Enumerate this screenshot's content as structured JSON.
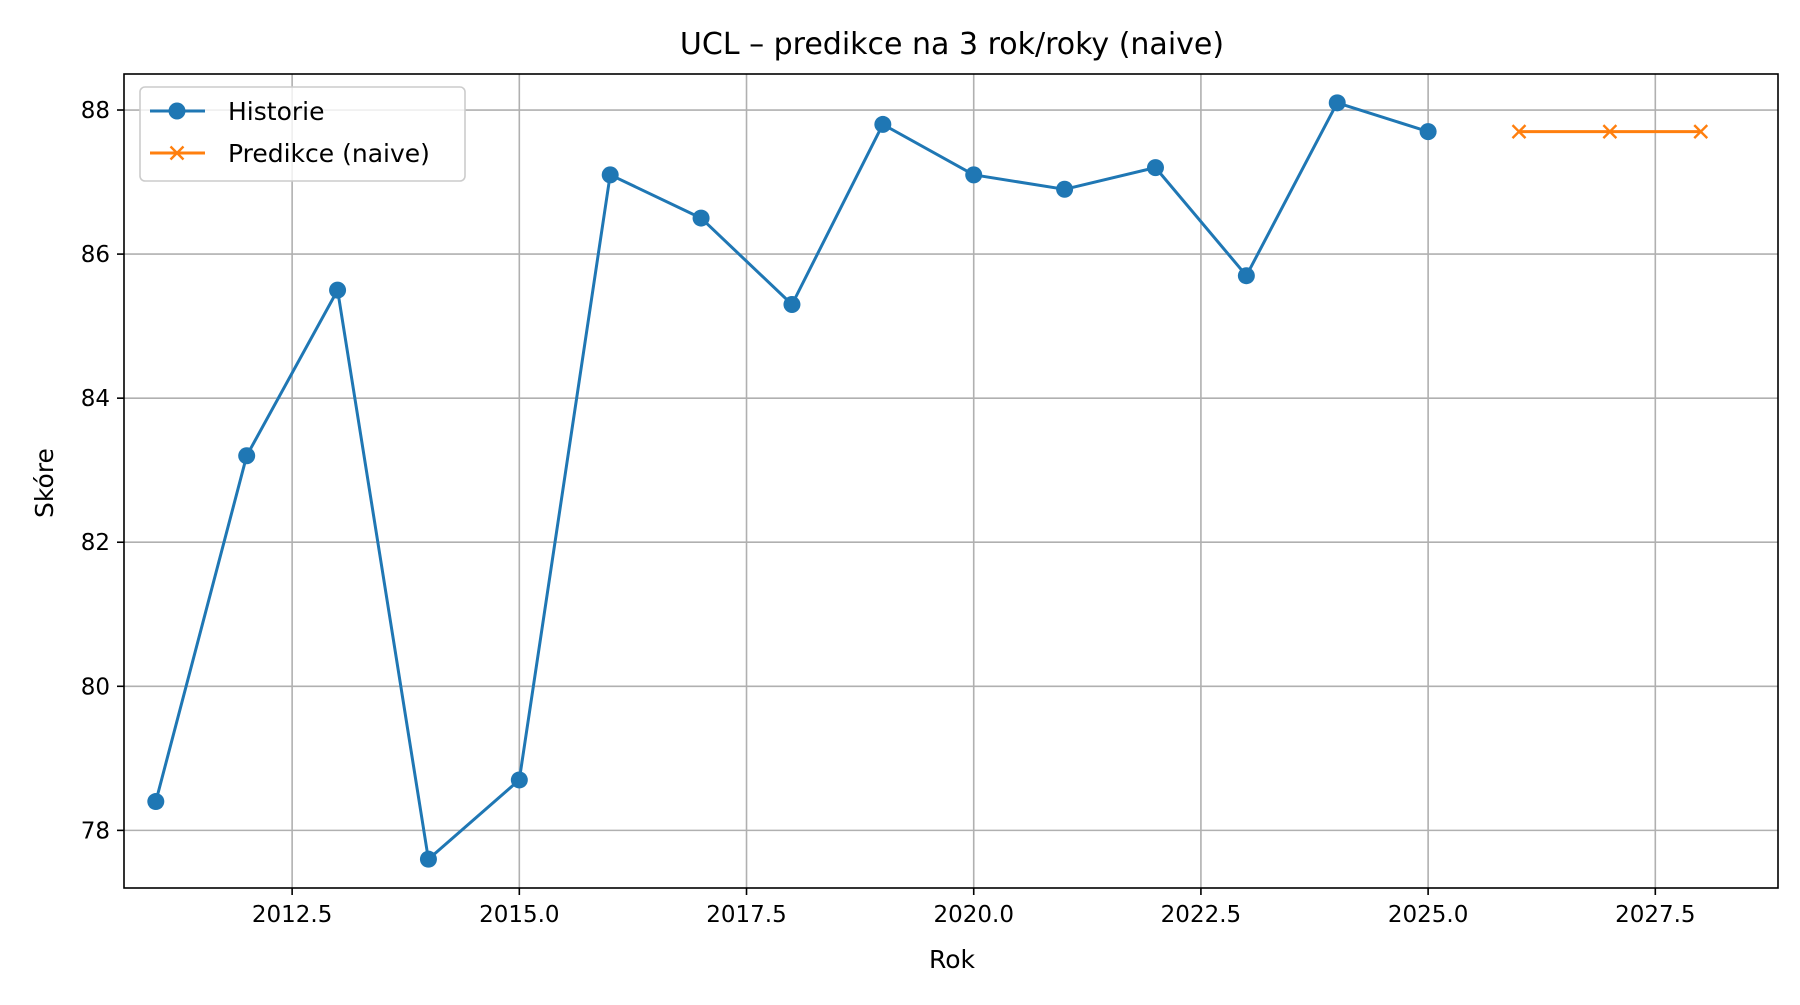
{
  "chart_data": {
    "type": "line",
    "title": "UCL – predikce na 3 rok/roky (naive)",
    "xlabel": "Rok",
    "ylabel": "Skóre",
    "xlim": [
      2010.65,
      2028.85
    ],
    "ylim": [
      77.2,
      88.5
    ],
    "x_ticks": [
      2012.5,
      2015.0,
      2017.5,
      2020.0,
      2022.5,
      2025.0,
      2027.5
    ],
    "x_tick_labels": [
      "2012.5",
      "2015.0",
      "2017.5",
      "2020.0",
      "2022.5",
      "2025.0",
      "2027.5"
    ],
    "y_ticks": [
      78,
      80,
      82,
      84,
      86,
      88
    ],
    "y_tick_labels": [
      "78",
      "80",
      "82",
      "84",
      "86",
      "88"
    ],
    "grid": true,
    "legend_position": "top-left",
    "series": [
      {
        "name": "Historie",
        "color": "#1f77b4",
        "marker": "circle",
        "x": [
          2011,
          2012,
          2013,
          2014,
          2015,
          2016,
          2017,
          2018,
          2019,
          2020,
          2021,
          2022,
          2023,
          2024,
          2025
        ],
        "values": [
          78.4,
          83.2,
          85.5,
          77.6,
          78.7,
          87.1,
          86.5,
          85.3,
          87.8,
          87.1,
          86.9,
          87.2,
          85.7,
          88.1,
          87.7
        ]
      },
      {
        "name": "Predikce (naive)",
        "color": "#ff7f0e",
        "marker": "x",
        "x": [
          2026,
          2027,
          2028
        ],
        "values": [
          87.7,
          87.7,
          87.7
        ]
      }
    ]
  }
}
